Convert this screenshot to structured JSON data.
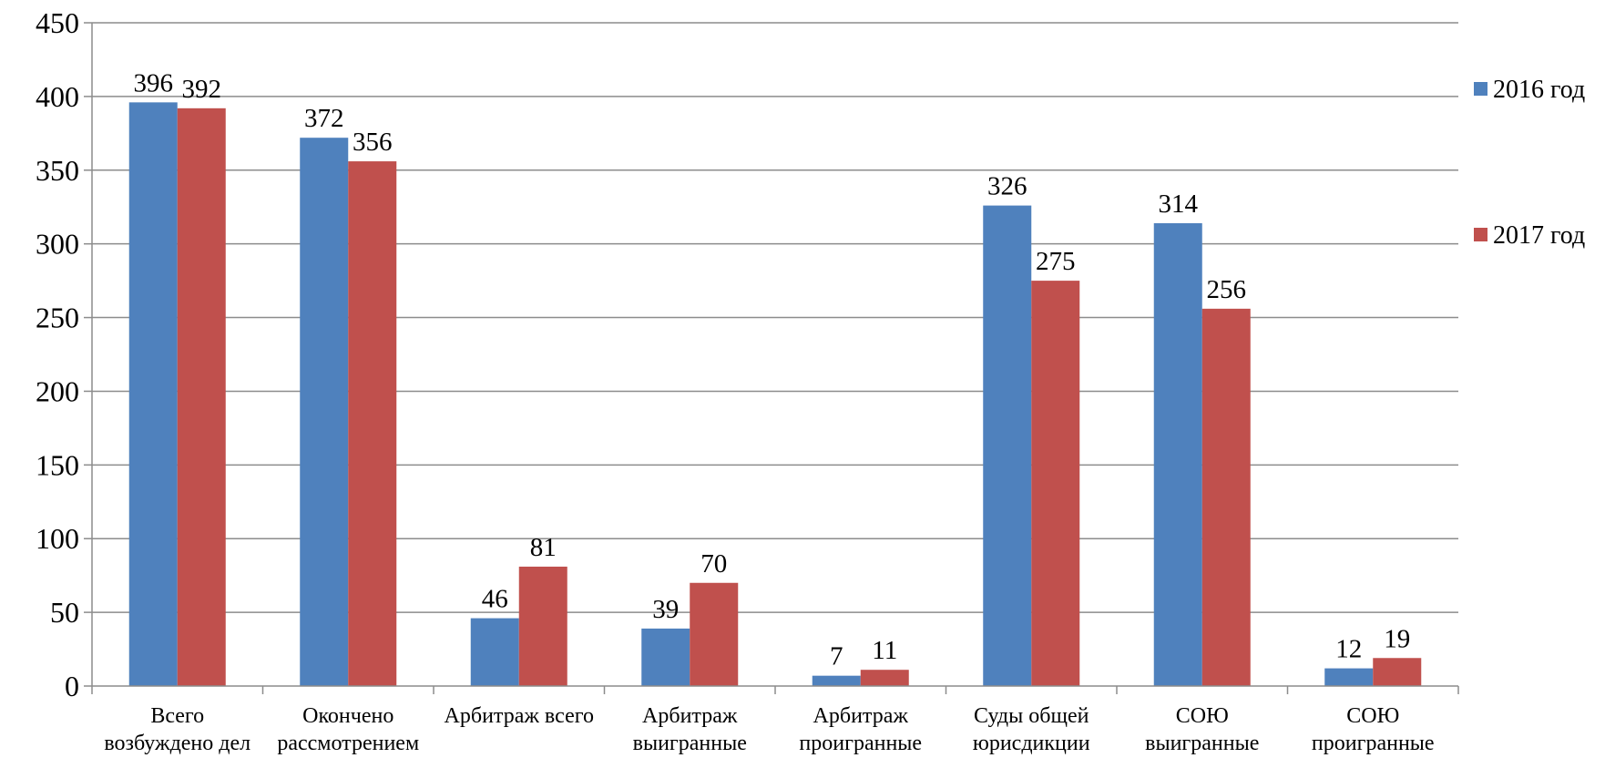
{
  "chart_data": {
    "type": "bar",
    "title": "",
    "xlabel": "",
    "ylabel": "",
    "ylim": [
      0,
      450
    ],
    "yticks": [
      0,
      50,
      100,
      150,
      200,
      250,
      300,
      350,
      400,
      450
    ],
    "grid": true,
    "legend": "right",
    "categories": [
      [
        "Всего",
        "возбуждено дел"
      ],
      [
        "Окончено",
        "рассмотрением"
      ],
      [
        "Арбитраж всего"
      ],
      [
        "Арбитраж",
        "выигранные"
      ],
      [
        "Арбитраж",
        "проигранные"
      ],
      [
        "Суды общей",
        "юрисдикции"
      ],
      [
        "СОЮ",
        "выигранные"
      ],
      [
        "СОЮ",
        "проигранные"
      ]
    ],
    "series": [
      {
        "name": "2016 год",
        "color": "#4F81BD",
        "values": [
          396,
          372,
          46,
          39,
          7,
          326,
          314,
          12
        ]
      },
      {
        "name": "2017 год",
        "color": "#C0504D",
        "values": [
          392,
          356,
          81,
          70,
          11,
          275,
          256,
          19
        ]
      }
    ]
  }
}
